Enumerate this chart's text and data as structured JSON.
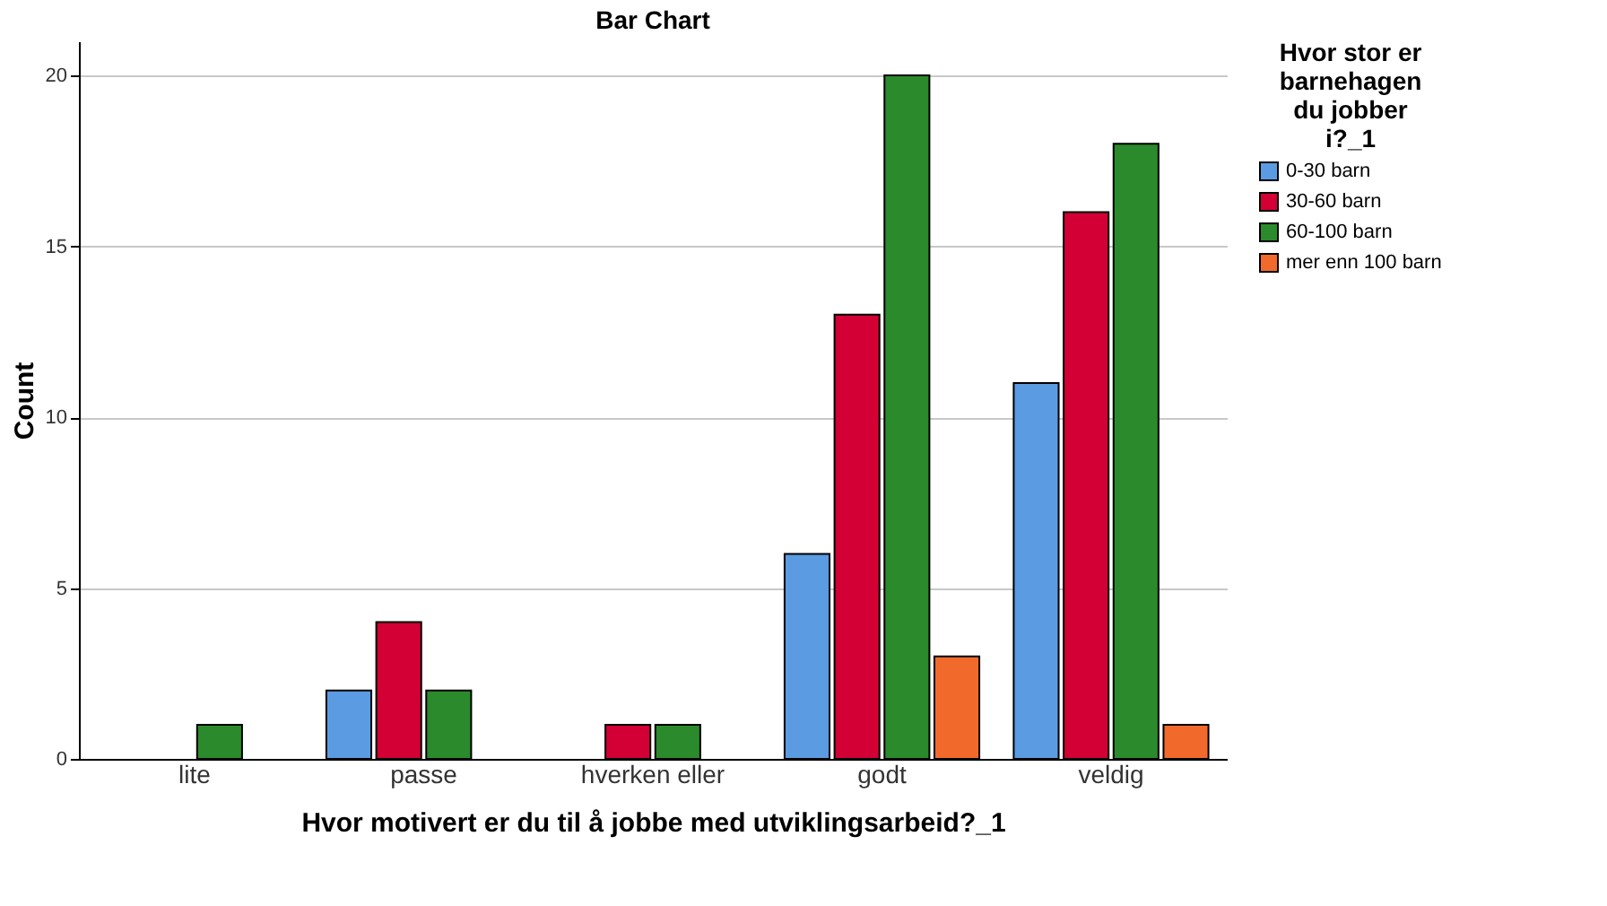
{
  "chart_data": {
    "type": "bar",
    "title": "Bar Chart",
    "xlabel": "Hvor motivert er du til å jobbe med utviklingsarbeid?_1",
    "ylabel": "Count",
    "legend_title": "Hvor stor er barnehagen du jobber i?_1",
    "categories": [
      "lite",
      "passe",
      "hverken eller",
      "godt",
      "veldig"
    ],
    "series": [
      {
        "name": "0-30 barn",
        "color": "#5a9be2",
        "values": [
          null,
          2,
          null,
          6,
          11
        ]
      },
      {
        "name": "30-60 barn",
        "color": "#d20035",
        "values": [
          null,
          4,
          1,
          13,
          16
        ]
      },
      {
        "name": "60-100 barn",
        "color": "#2b8a2b",
        "values": [
          1,
          2,
          1,
          20,
          18
        ]
      },
      {
        "name": "mer enn 100 barn",
        "color": "#f26a2b",
        "values": [
          null,
          null,
          null,
          3,
          1
        ]
      }
    ],
    "ylim": [
      0,
      21
    ],
    "yticks": [
      0,
      5,
      10,
      15,
      20
    ],
    "grid": "y",
    "legend": "top right"
  }
}
